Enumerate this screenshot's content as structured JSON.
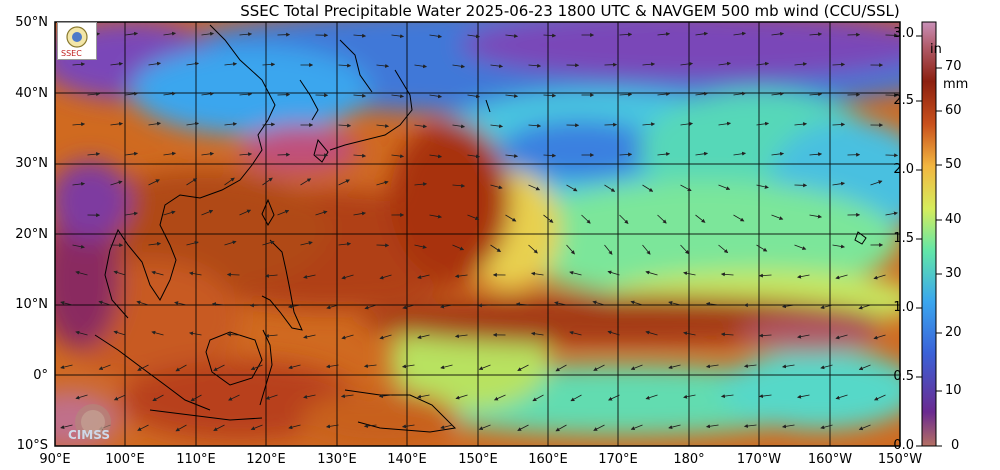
{
  "title": "SSEC Total Precipitable Water  2025-06-23 1800 UTC & NAVGEM 500 mb wind (CCU/SSL)",
  "map": {
    "lat_labels": [
      "50°N",
      "40°N",
      "30°N",
      "20°N",
      "10°N",
      "0°",
      "10°S"
    ],
    "lon_labels": [
      "90°E",
      "100°E",
      "110°E",
      "120°E",
      "130°E",
      "140°E",
      "150°E",
      "160°E",
      "170°E",
      "180°",
      "170°W",
      "160°W",
      "150°W"
    ]
  },
  "colorbar": {
    "unit_in": "in",
    "unit_mm": "mm",
    "in_ticks": [
      "3.0",
      "2.5",
      "2.0",
      "1.5",
      "1.0",
      "0.5",
      "0.0"
    ],
    "mm_ticks": [
      "70",
      "60",
      "50",
      "40",
      "30",
      "20",
      "10",
      "0"
    ],
    "colors": [
      "#b57063",
      "#6a2a90",
      "#3a62d8",
      "#3aa6ee",
      "#62e6a8",
      "#d6ec5c",
      "#f2b640",
      "#c8501c",
      "#8c2010",
      "#b05a68",
      "#c990b8"
    ]
  },
  "logos": {
    "ssec_text": "SSEC",
    "cimss_text": "CIMSS"
  }
}
